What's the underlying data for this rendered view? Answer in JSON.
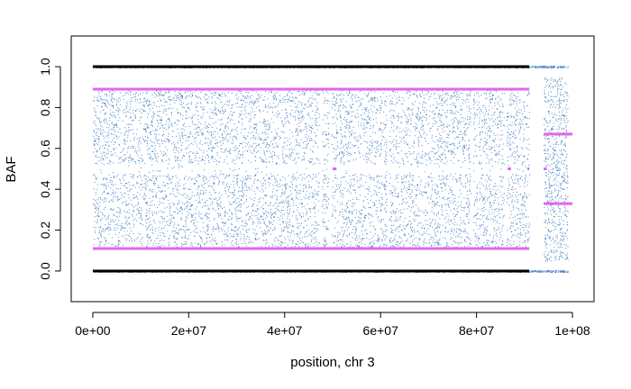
{
  "chart_data": {
    "type": "scatter",
    "title": "",
    "xlabel": "position, chr 3",
    "ylabel": "BAF",
    "xlim": [
      -4500000,
      104500000
    ],
    "ylim": [
      -0.15,
      1.15
    ],
    "x_ticks": [
      0,
      20000000,
      40000000,
      60000000,
      80000000,
      100000000
    ],
    "x_tick_labels": [
      "0e+00",
      "2e+07",
      "4e+07",
      "6e+07",
      "8e+07",
      "1e+08"
    ],
    "y_ticks": [
      0.0,
      0.2,
      0.4,
      0.6,
      0.8,
      1.0
    ],
    "y_tick_labels": [
      "0.0",
      "0.2",
      "0.4",
      "0.6",
      "0.8",
      "1.0"
    ],
    "grid": false,
    "legend": "none",
    "colors": {
      "points": "#4f86c6",
      "reference_lines": "#000000",
      "segments": "#e066ee"
    },
    "point_cloud": {
      "description_of_regions": "dense SNP BAF points",
      "regions": [
        {
          "x_start": 0,
          "x_end": 91000000,
          "baf_low": 0.11,
          "baf_high": 0.89,
          "density": "high"
        },
        {
          "x_start": 94000000,
          "x_end": 99000000,
          "baf_low": 0.05,
          "baf_high": 0.95,
          "density": "low"
        }
      ],
      "homozygous_bands": [
        0.0,
        1.0
      ]
    },
    "series": [
      {
        "kind": "reference",
        "segments": [
          {
            "x_start": 0,
            "x_end": 91000000,
            "y": 1.0
          },
          {
            "x_start": 0,
            "x_end": 91000000,
            "y": 0.0
          }
        ]
      },
      {
        "kind": "segment",
        "segments": [
          {
            "x_start": 0,
            "x_end": 91000000,
            "y": 0.89
          },
          {
            "x_start": 0,
            "x_end": 91000000,
            "y": 0.11
          },
          {
            "x_start": 50000000,
            "x_end": 50800000,
            "y": 0.5
          },
          {
            "x_start": 86500000,
            "x_end": 87200000,
            "y": 0.5
          },
          {
            "x_start": 90600000,
            "x_end": 91000000,
            "y": 0.5
          },
          {
            "x_start": 94000000,
            "x_end": 100000000,
            "y": 0.67
          },
          {
            "x_start": 94000000,
            "x_end": 100000000,
            "y": 0.33
          },
          {
            "x_start": 94000000,
            "x_end": 94600000,
            "y": 0.5
          }
        ]
      }
    ]
  }
}
